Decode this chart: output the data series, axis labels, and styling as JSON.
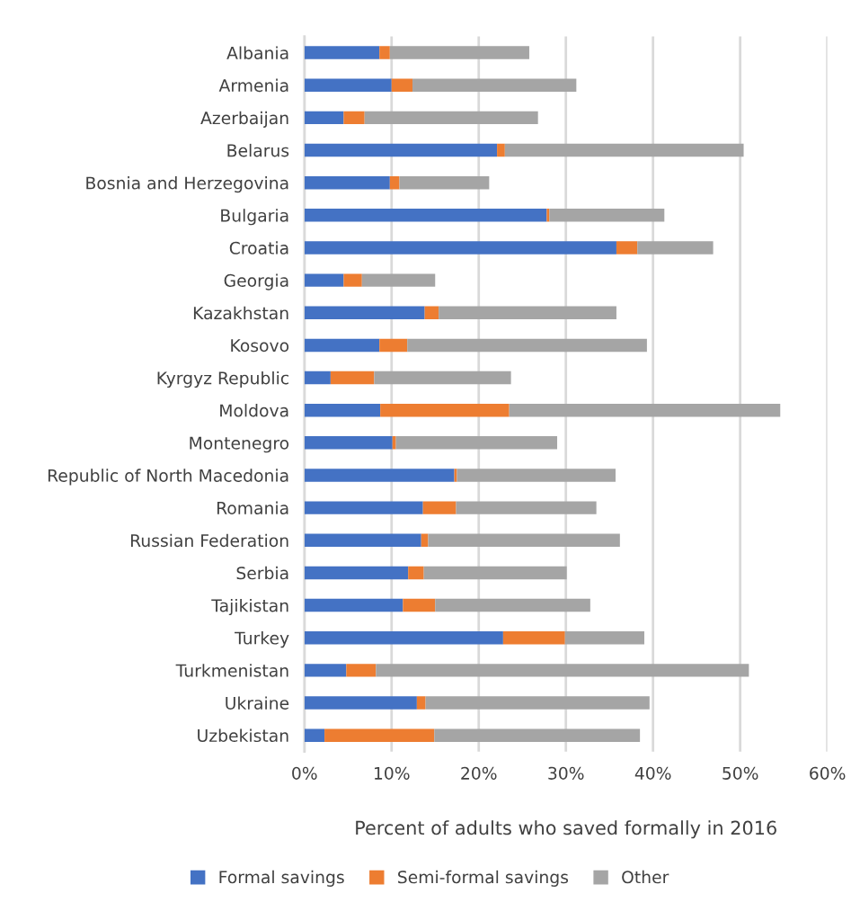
{
  "chart_data": {
    "type": "bar",
    "orientation": "horizontal",
    "stacked": true,
    "xlabel": "Percent of adults who saved formally in 2016",
    "categories": [
      "Albania",
      "Armenia",
      "Azerbaijan",
      "Belarus",
      "Bosnia and Herzegovina",
      "Bulgaria",
      "Croatia",
      "Georgia",
      "Kazakhstan",
      "Kosovo",
      "Kyrgyz Republic",
      "Moldova",
      "Montenegro",
      "Republic of North Macedonia",
      "Romania",
      "Russian Federation",
      "Serbia",
      "Tajikistan",
      "Turkey",
      "Turkmenistan",
      "Ukraine",
      "Uzbekistan"
    ],
    "series": [
      {
        "name": "Formal savings",
        "color": "#4472c4",
        "values": [
          8.6,
          10.0,
          4.5,
          22.1,
          9.8,
          27.8,
          35.8,
          4.5,
          13.8,
          8.6,
          3.0,
          8.7,
          10.1,
          17.2,
          13.6,
          13.4,
          11.9,
          11.3,
          22.8,
          4.8,
          12.9,
          2.3
        ]
      },
      {
        "name": "Semi-formal savings",
        "color": "#ed7d31",
        "values": [
          1.2,
          2.4,
          2.4,
          0.9,
          1.1,
          0.3,
          2.4,
          2.1,
          1.6,
          3.2,
          5.0,
          14.8,
          0.4,
          0.3,
          3.8,
          0.8,
          1.8,
          3.7,
          7.1,
          3.4,
          1.0,
          12.6
        ]
      },
      {
        "name": "Other",
        "color": "#a5a5a5",
        "values": [
          16.0,
          18.8,
          19.9,
          27.4,
          10.3,
          13.2,
          8.7,
          8.4,
          20.4,
          27.5,
          15.7,
          31.1,
          18.5,
          18.2,
          16.1,
          22.0,
          16.4,
          17.8,
          9.1,
          42.8,
          25.7,
          23.6
        ]
      }
    ],
    "xlim": [
      0,
      60
    ],
    "xticks": [
      {
        "value": 0,
        "label": "0%"
      },
      {
        "value": 10,
        "label": "10%"
      },
      {
        "value": 20,
        "label": "20%"
      },
      {
        "value": 30,
        "label": "30%"
      },
      {
        "value": 40,
        "label": "40%"
      },
      {
        "value": 50,
        "label": "50%"
      },
      {
        "value": 60,
        "label": "60%"
      }
    ],
    "grid": "x",
    "legend": "bottom"
  }
}
